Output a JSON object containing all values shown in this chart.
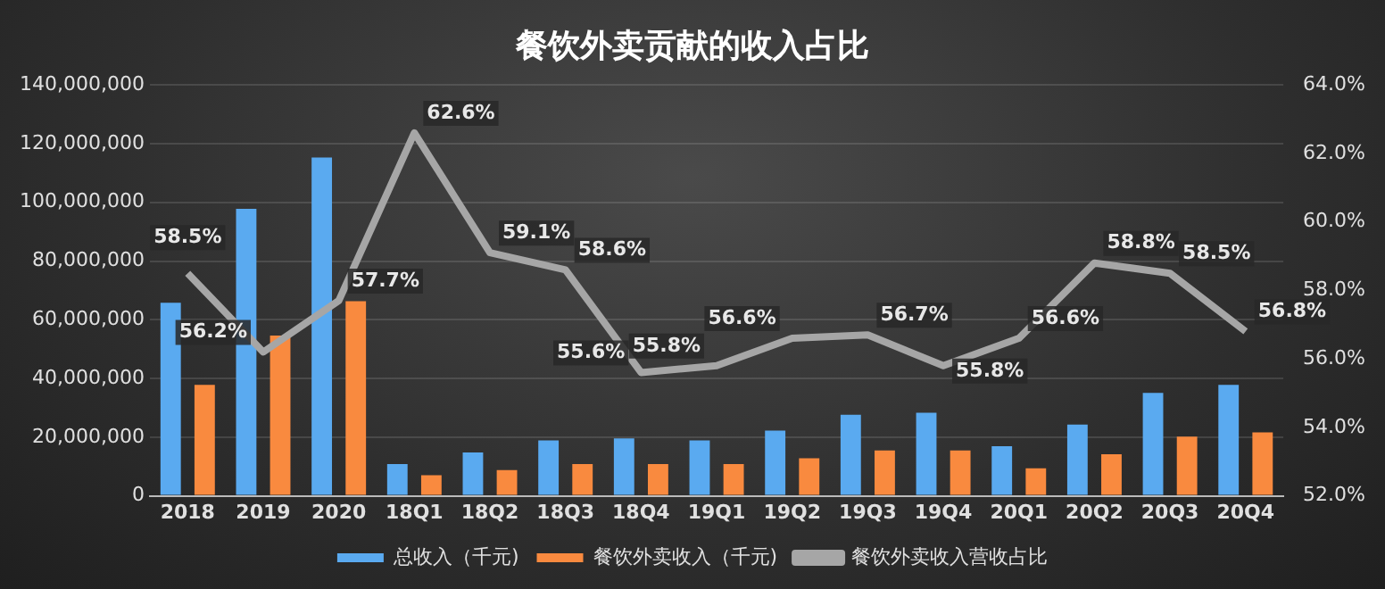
{
  "chart_data": {
    "type": "bar",
    "title": "餐饮外卖贡献的收入占比",
    "categories": [
      "2018",
      "2019",
      "2020",
      "18Q1",
      "18Q2",
      "18Q3",
      "18Q4",
      "19Q1",
      "19Q2",
      "19Q3",
      "19Q4",
      "20Q1",
      "20Q2",
      "20Q3",
      "20Q4"
    ],
    "series": [
      {
        "name": "总收入（千元)",
        "color": "#5aaaf0",
        "values": [
          65800000,
          97800000,
          115300000,
          10800000,
          14800000,
          18900000,
          19600000,
          18900000,
          22200000,
          27600000,
          28300000,
          16900000,
          24300000,
          35100000,
          37800000
        ]
      },
      {
        "name": "餐饮外卖收入（千元)",
        "color": "#f98a3f",
        "values": [
          37800000,
          54600000,
          66300000,
          7000000,
          8800000,
          10800000,
          10800000,
          10800000,
          12800000,
          15500000,
          15500000,
          9400000,
          14200000,
          20200000,
          21600000
        ]
      },
      {
        "name": "餐饮外卖收入营收占比",
        "type": "line",
        "axis": "y2",
        "color": "#a6a6a6",
        "marker": "none",
        "values": [
          58.5,
          56.2,
          57.7,
          62.6,
          59.1,
          58.6,
          55.6,
          55.8,
          56.6,
          56.7,
          55.8,
          56.6,
          58.8,
          58.5,
          56.8
        ],
        "value_labels": [
          "58.5%",
          "56.2%",
          "57.7%",
          "62.6%",
          "59.1%",
          "58.6%",
          "55.6%",
          "55.8%",
          "56.6%",
          "56.7%",
          "55.8%",
          "56.6%",
          "58.8%",
          "58.5%",
          "56.8%"
        ]
      }
    ],
    "ylim": [
      0,
      140000000
    ],
    "yticks": [
      {
        "value": 0,
        "label": "0"
      },
      {
        "value": 20000000,
        "label": "20,000,000"
      },
      {
        "value": 40000000,
        "label": "40,000,000"
      },
      {
        "value": 60000000,
        "label": "60,000,000"
      },
      {
        "value": 80000000,
        "label": "80,000,000"
      },
      {
        "value": 100000000,
        "label": "100,000,000"
      },
      {
        "value": 120000000,
        "label": "120,000,000"
      },
      {
        "value": 140000000,
        "label": "140,000,000"
      }
    ],
    "y2lim": [
      52,
      64
    ],
    "y2ticks": [
      {
        "value": 52,
        "label": "52.0%"
      },
      {
        "value": 54,
        "label": "54.0%"
      },
      {
        "value": 56,
        "label": "56.0%"
      },
      {
        "value": 58,
        "label": "58.0%"
      },
      {
        "value": 60,
        "label": "60.0%"
      },
      {
        "value": 62,
        "label": "62.0%"
      },
      {
        "value": 64,
        "label": "64.0%"
      }
    ],
    "grid": "y",
    "legend": "bottom"
  }
}
